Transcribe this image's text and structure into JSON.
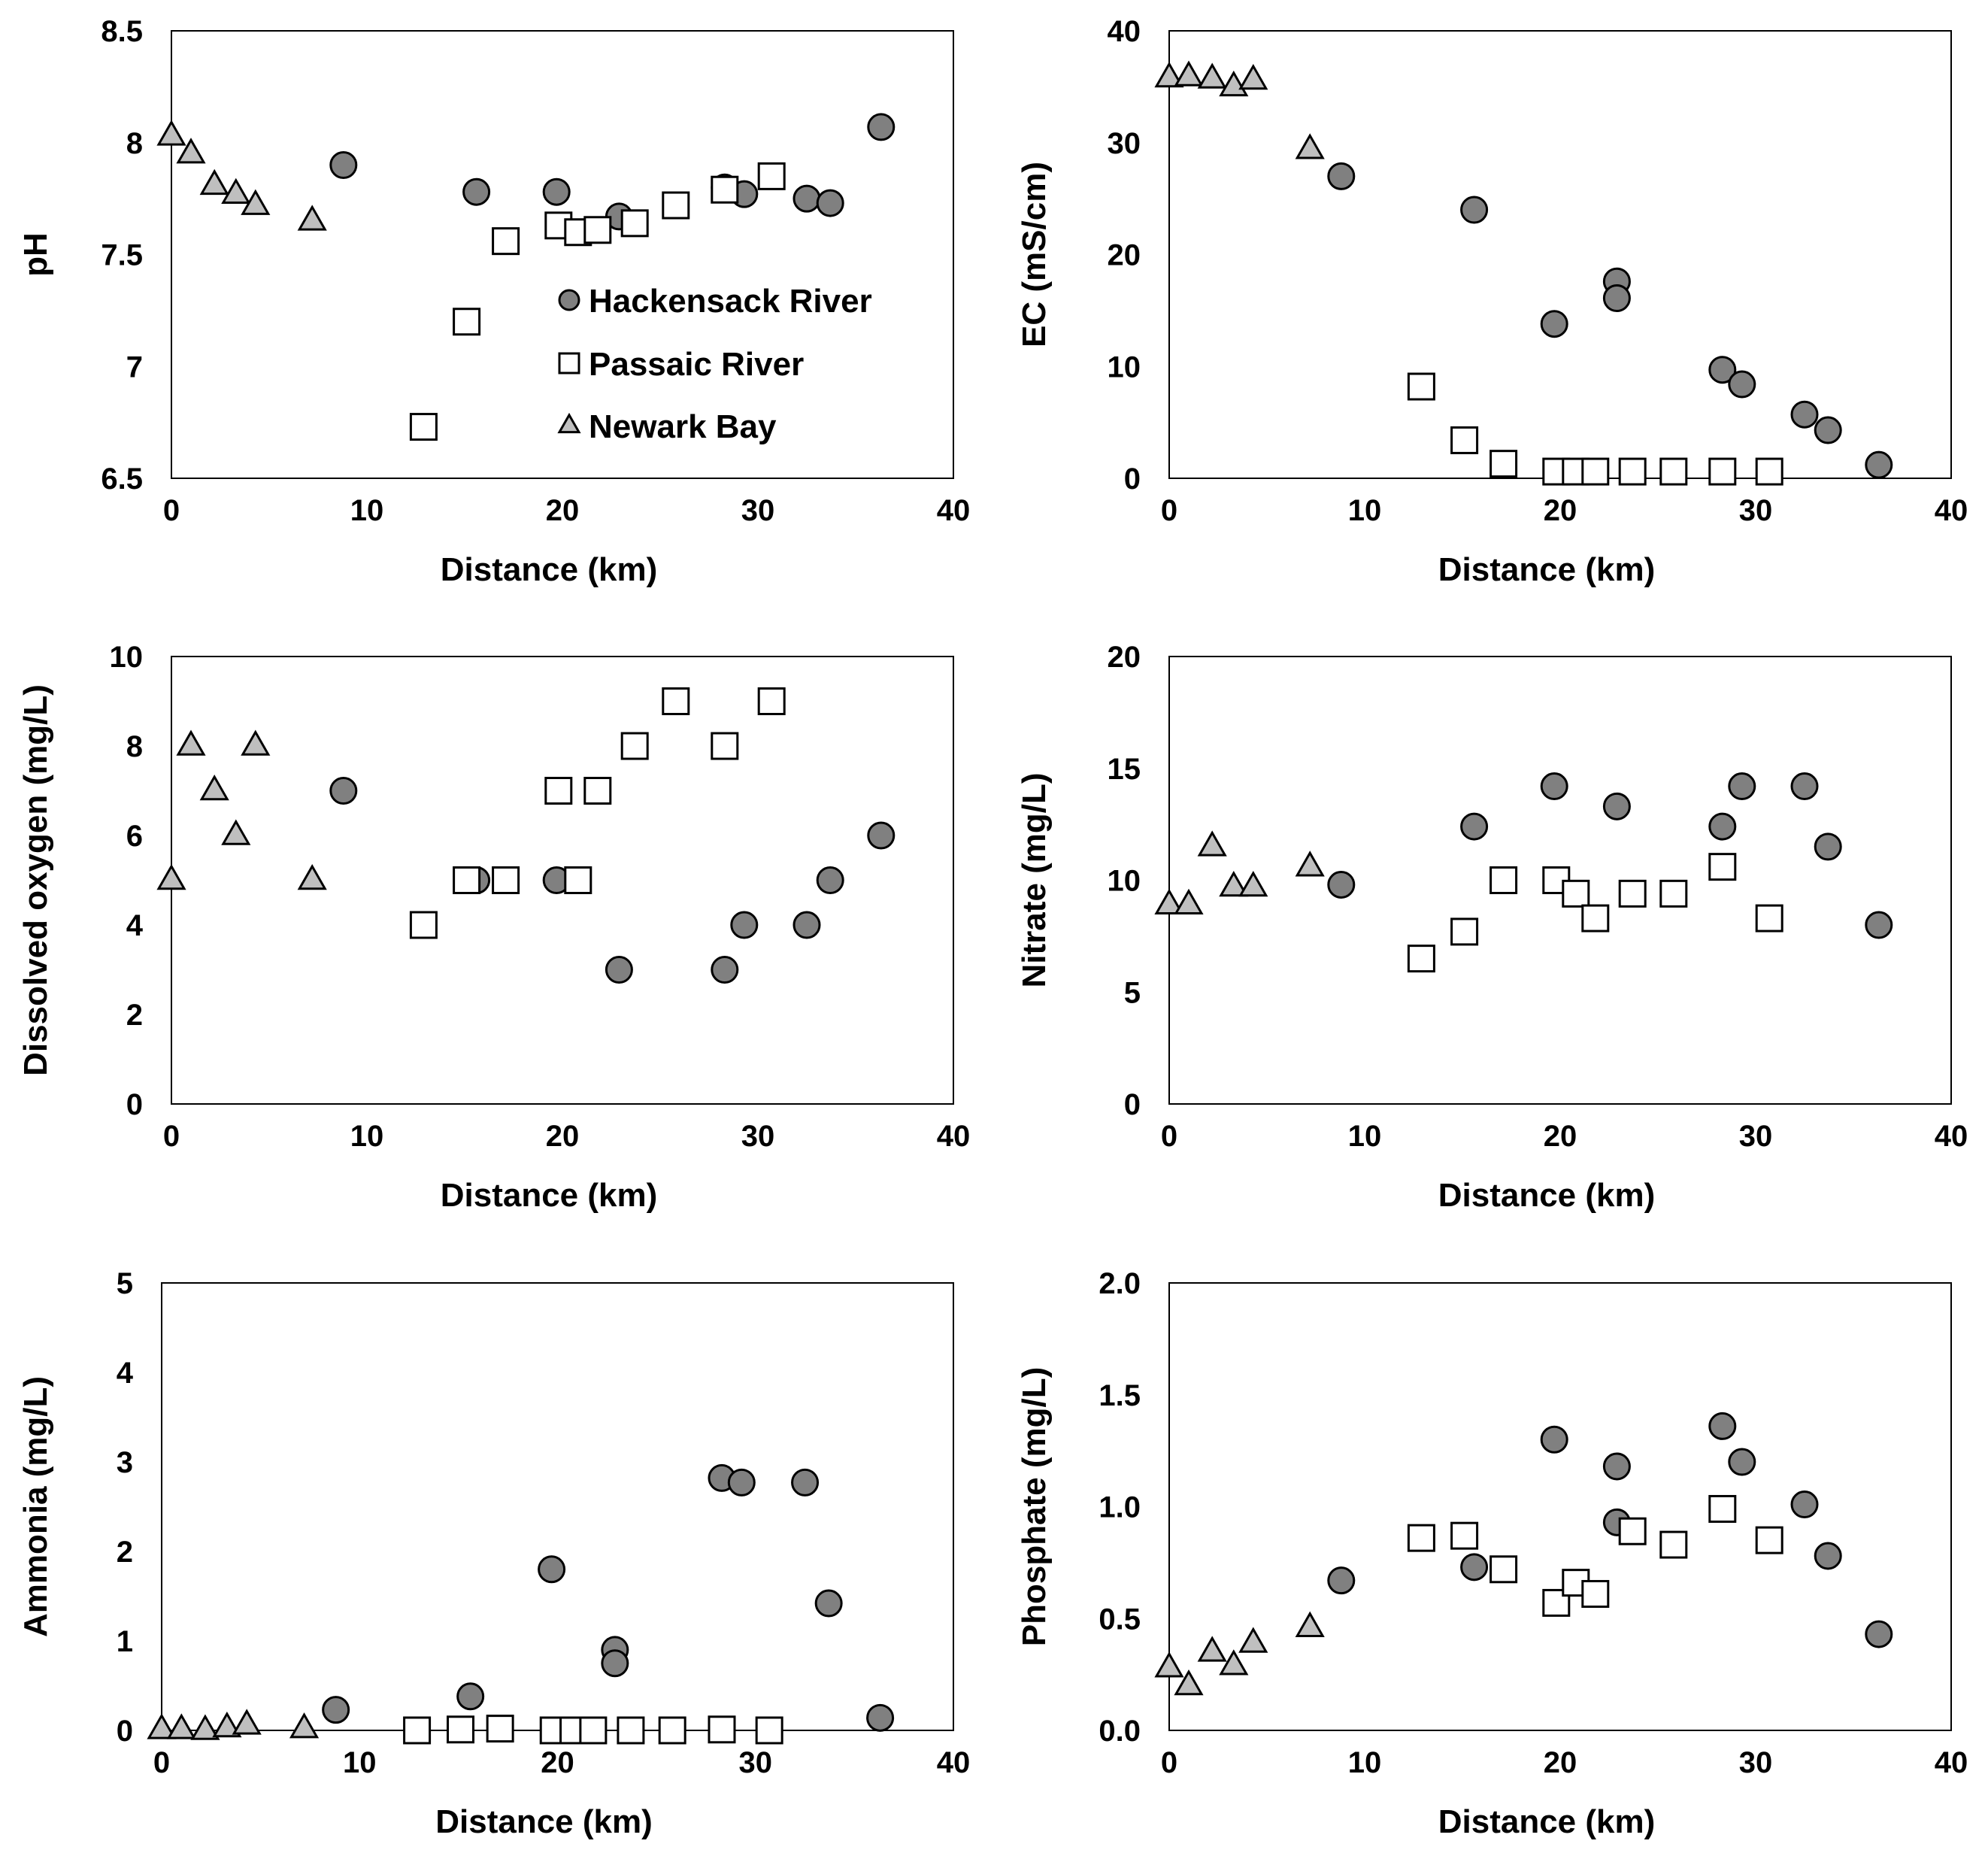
{
  "legend": {
    "hackensack": "Hackensack River",
    "passaic": "Passaic River",
    "newark": "Newark Bay"
  },
  "colors": {
    "hackensack_fill": "#808080",
    "newark_fill": "#bfbfbf",
    "passaic_fill": "#ffffff",
    "stroke": "#000000"
  },
  "chart_data": [
    {
      "type": "scatter",
      "title": "",
      "xlabel": "Distance (km)",
      "ylabel": "pH",
      "xlim": [
        0,
        40
      ],
      "ylim": [
        6.5,
        8.5
      ],
      "xticks": [
        "0",
        "10",
        "20",
        "30",
        "40"
      ],
      "yticks": [
        "6.5",
        "7",
        "7.5",
        "8",
        "8.5"
      ],
      "legend_position": "inside-lower-right",
      "series": [
        {
          "name": "Hackensack River",
          "x": [
            8.8,
            15.6,
            19.7,
            22.9,
            28.3,
            29.3,
            32.5,
            33.7,
            36.3
          ],
          "y": [
            7.9,
            7.78,
            7.78,
            7.67,
            7.8,
            7.77,
            7.75,
            7.73,
            8.07
          ]
        },
        {
          "name": "Passaic River",
          "x": [
            12.9,
            15.1,
            17.1,
            19.8,
            20.8,
            21.8,
            23.7,
            25.8,
            28.3,
            30.7
          ],
          "y": [
            6.73,
            7.2,
            7.56,
            7.63,
            7.6,
            7.61,
            7.64,
            7.72,
            7.79,
            7.85
          ]
        },
        {
          "name": "Newark Bay",
          "x": [
            0.0,
            1.0,
            2.2,
            3.3,
            4.3,
            7.2
          ],
          "y": [
            8.03,
            7.95,
            7.81,
            7.77,
            7.72,
            7.65
          ]
        }
      ]
    },
    {
      "type": "scatter",
      "title": "",
      "xlabel": "Distance (km)",
      "ylabel": "EC (mS/cm)",
      "xlim": [
        0,
        40
      ],
      "ylim": [
        0,
        40
      ],
      "xticks": [
        "0",
        "10",
        "20",
        "30",
        "40"
      ],
      "yticks": [
        "0",
        "10",
        "20",
        "30",
        "40"
      ],
      "series": [
        {
          "name": "Hackensack River",
          "x": [
            8.8,
            15.6,
            19.7,
            22.9,
            22.9,
            28.3,
            29.3,
            32.5,
            33.7,
            36.3
          ],
          "y": [
            27.0,
            24.0,
            13.8,
            17.6,
            16.1,
            9.7,
            8.4,
            5.7,
            4.3,
            1.2
          ]
        },
        {
          "name": "Passaic River",
          "x": [
            12.9,
            15.1,
            17.1,
            19.8,
            20.8,
            21.8,
            23.7,
            25.8,
            28.3,
            30.7
          ],
          "y": [
            8.2,
            3.4,
            1.3,
            0.6,
            0.6,
            0.6,
            0.6,
            0.6,
            0.6,
            0.6
          ]
        },
        {
          "name": "Newark Bay",
          "x": [
            0.0,
            1.0,
            2.2,
            3.3,
            4.3,
            7.2
          ],
          "y": [
            35.8,
            35.9,
            35.7,
            35.0,
            35.6,
            29.4
          ]
        }
      ]
    },
    {
      "type": "scatter",
      "title": "",
      "xlabel": "Distance (km)",
      "ylabel": "Dissolved oxygen (mg/L)",
      "xlim": [
        0,
        40
      ],
      "ylim": [
        0,
        10
      ],
      "xticks": [
        "0",
        "10",
        "20",
        "30",
        "40"
      ],
      "yticks": [
        "0",
        "2",
        "4",
        "6",
        "8",
        "10"
      ],
      "series": [
        {
          "name": "Hackensack River",
          "x": [
            8.8,
            15.6,
            19.7,
            22.9,
            28.3,
            29.3,
            32.5,
            33.7,
            36.3
          ],
          "y": [
            7,
            5,
            5,
            3,
            3,
            4,
            4,
            5,
            6
          ]
        },
        {
          "name": "Passaic River",
          "x": [
            12.9,
            15.1,
            17.1,
            19.8,
            20.8,
            21.8,
            23.7,
            25.8,
            28.3,
            30.7
          ],
          "y": [
            4,
            5,
            5,
            7,
            5,
            7,
            8,
            9,
            8,
            9
          ]
        },
        {
          "name": "Newark Bay",
          "x": [
            0.0,
            1.0,
            2.2,
            3.3,
            4.3,
            7.2
          ],
          "y": [
            5,
            8,
            7,
            6,
            8,
            5
          ]
        }
      ]
    },
    {
      "type": "scatter",
      "title": "",
      "xlabel": "Distance (km)",
      "ylabel": "Nitrate (mg/L)",
      "xlim": [
        0,
        40
      ],
      "ylim": [
        0,
        20
      ],
      "xticks": [
        "0",
        "10",
        "20",
        "30",
        "40"
      ],
      "yticks": [
        "0",
        "5",
        "10",
        "15",
        "20"
      ],
      "series": [
        {
          "name": "Hackensack River",
          "x": [
            8.8,
            15.6,
            19.7,
            22.9,
            28.3,
            29.3,
            32.5,
            33.7,
            36.3
          ],
          "y": [
            9.8,
            12.4,
            14.2,
            13.3,
            12.4,
            14.2,
            14.2,
            11.5,
            8.0
          ]
        },
        {
          "name": "Passaic River",
          "x": [
            12.9,
            15.1,
            17.1,
            19.8,
            20.8,
            21.8,
            23.7,
            25.8,
            28.3,
            30.7
          ],
          "y": [
            6.5,
            7.7,
            10.0,
            10.0,
            9.4,
            8.3,
            9.4,
            9.4,
            10.6,
            8.3
          ]
        },
        {
          "name": "Newark Bay",
          "x": [
            0.0,
            1.0,
            2.2,
            3.3,
            4.3,
            7.2
          ],
          "y": [
            8.9,
            8.9,
            11.5,
            9.7,
            9.7,
            10.6
          ]
        }
      ]
    },
    {
      "type": "scatter",
      "title": "",
      "xlabel": "Distance (km)",
      "ylabel": "Ammonia (mg/L)",
      "xlim": [
        0,
        40
      ],
      "ylim": [
        0,
        5
      ],
      "xticks": [
        "0",
        "10",
        "20",
        "30",
        "40"
      ],
      "yticks": [
        "0",
        "1",
        "2",
        "3",
        "4",
        "5"
      ],
      "series": [
        {
          "name": "Hackensack River",
          "x": [
            8.8,
            15.6,
            19.7,
            22.9,
            22.9,
            28.3,
            29.3,
            32.5,
            33.7,
            36.3
          ],
          "y": [
            0.23,
            0.38,
            1.8,
            0.9,
            0.75,
            2.82,
            2.77,
            2.77,
            1.42,
            0.14
          ]
        },
        {
          "name": "Passaic River",
          "x": [
            12.9,
            15.1,
            17.1,
            19.8,
            20.8,
            21.8,
            23.7,
            25.8,
            28.3,
            30.7
          ],
          "y": [
            0,
            0.01,
            0.02,
            0,
            0,
            0,
            0,
            0,
            0.01,
            0
          ]
        },
        {
          "name": "Newark Bay",
          "x": [
            0.0,
            1.0,
            2.2,
            3.3,
            4.3,
            7.2
          ],
          "y": [
            0.01,
            0.01,
            0,
            0.03,
            0.06,
            0.02
          ]
        }
      ]
    },
    {
      "type": "scatter",
      "title": "",
      "xlabel": "Distance (km)",
      "ylabel": "Phosphate (mg/L)",
      "xlim": [
        0,
        40
      ],
      "ylim": [
        0,
        2
      ],
      "xticks": [
        "0",
        "10",
        "20",
        "30",
        "40"
      ],
      "yticks": [
        "0.0",
        "0.5",
        "1.0",
        "1.5",
        "2.0"
      ],
      "series": [
        {
          "name": "Hackensack River",
          "x": [
            8.8,
            15.6,
            19.7,
            22.9,
            22.9,
            28.3,
            29.3,
            32.5,
            33.7,
            36.3
          ],
          "y": [
            0.67,
            0.73,
            1.3,
            1.18,
            0.93,
            1.36,
            1.2,
            1.01,
            0.78,
            0.43
          ]
        },
        {
          "name": "Passaic River",
          "x": [
            12.9,
            15.1,
            17.1,
            19.8,
            20.8,
            21.8,
            23.7,
            25.8,
            28.3,
            30.7
          ],
          "y": [
            0.86,
            0.87,
            0.72,
            0.57,
            0.66,
            0.61,
            0.89,
            0.83,
            0.99,
            0.85
          ]
        },
        {
          "name": "Newark Bay",
          "x": [
            0.0,
            1.0,
            2.2,
            3.3,
            4.3,
            7.2
          ],
          "y": [
            0.28,
            0.2,
            0.35,
            0.29,
            0.39,
            0.46
          ]
        }
      ]
    }
  ]
}
